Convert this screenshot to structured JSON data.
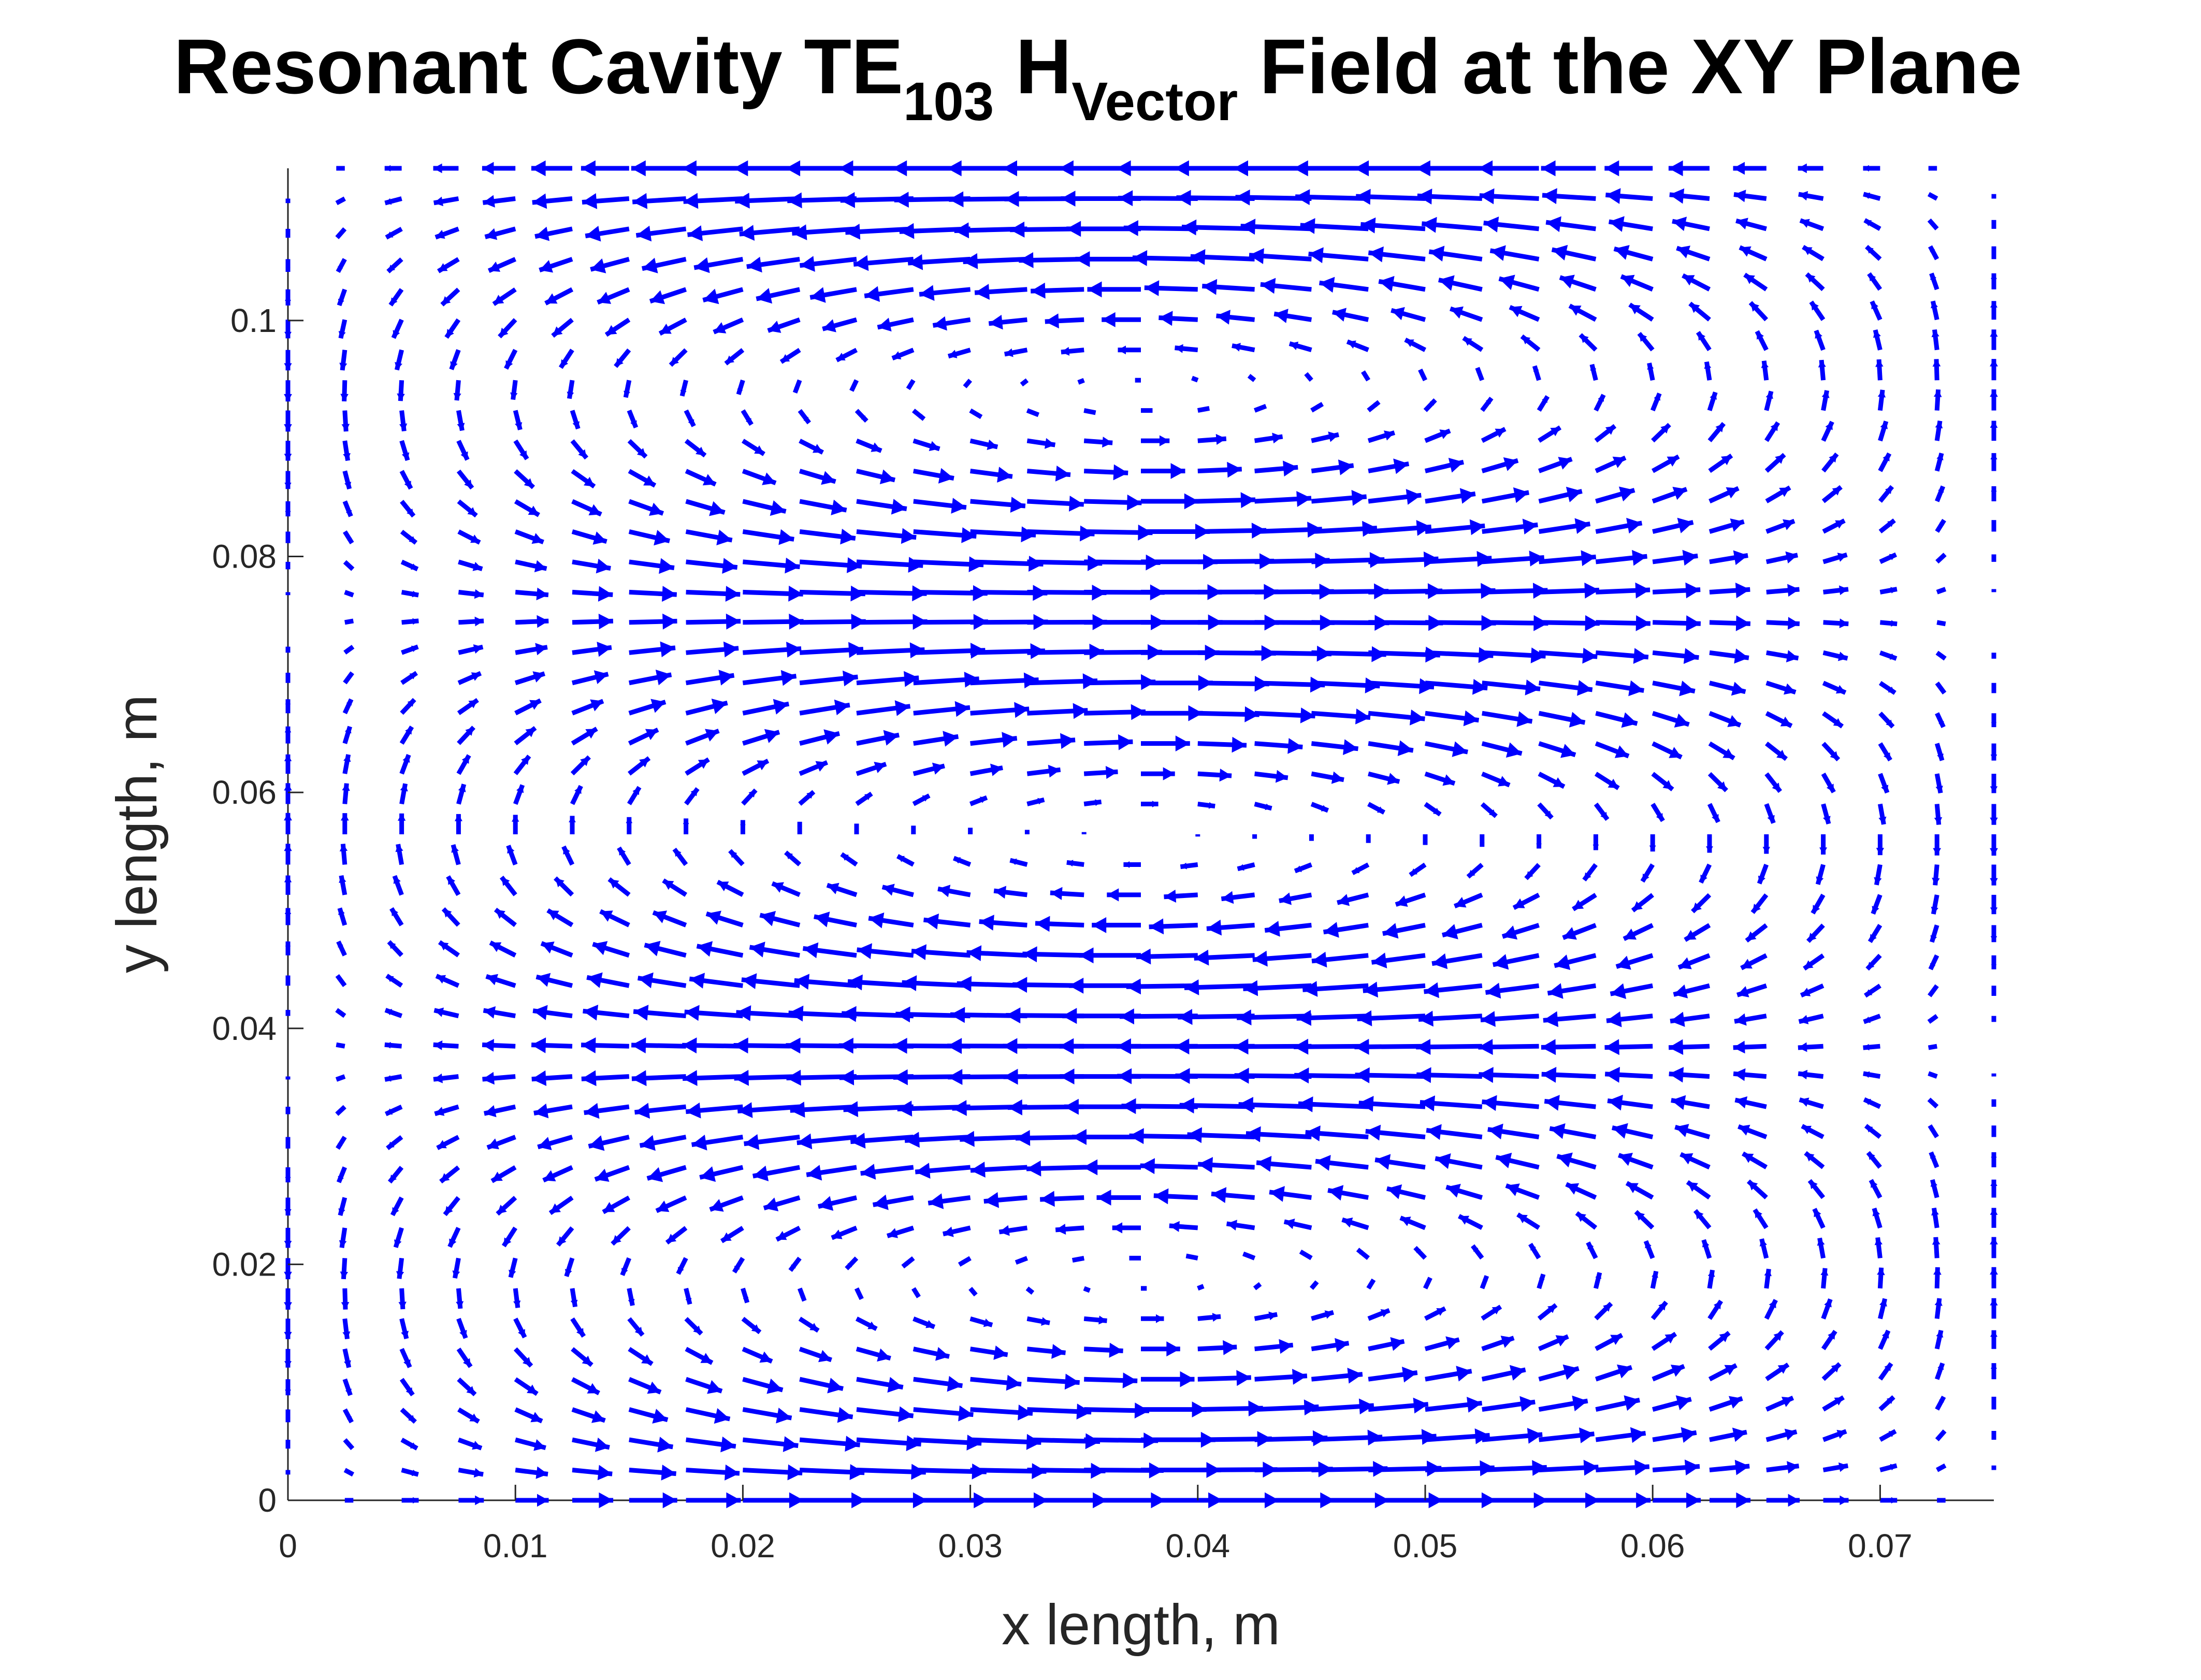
{
  "chart_data": {
    "type": "quiver",
    "title": {
      "prefix": "Resonant Cavity TE",
      "mode_subscript": "103",
      "field_symbol": "H",
      "field_subscript": "Vector",
      "suffix": "Field at the XY Plane"
    },
    "xlabel": "x length, m",
    "ylabel": "y length, m",
    "xlim": [
      0,
      0.075
    ],
    "ylim": [
      0,
      0.1129
    ],
    "x_ticks": [
      0,
      0.01,
      0.02,
      0.03,
      0.04,
      0.05,
      0.06,
      0.07
    ],
    "x_tick_labels": [
      "0",
      "0.01",
      "0.02",
      "0.03",
      "0.04",
      "0.05",
      "0.06",
      "0.07"
    ],
    "y_ticks": [
      0,
      0.02,
      0.04,
      0.06,
      0.08,
      0.1
    ],
    "y_tick_labels": [
      "0",
      "0.02",
      "0.04",
      "0.06",
      "0.08",
      "0.1"
    ],
    "field": {
      "component": "H",
      "mode": "TE103",
      "a": 0.075,
      "b": 0.1129,
      "grid_nx": 31,
      "grid_ny": 45,
      "max_arrow_x_units": 0.0036,
      "circulation": "counter-rotating vortices in three bands along y"
    },
    "grid": false,
    "box": false,
    "color": "#0000ff"
  }
}
